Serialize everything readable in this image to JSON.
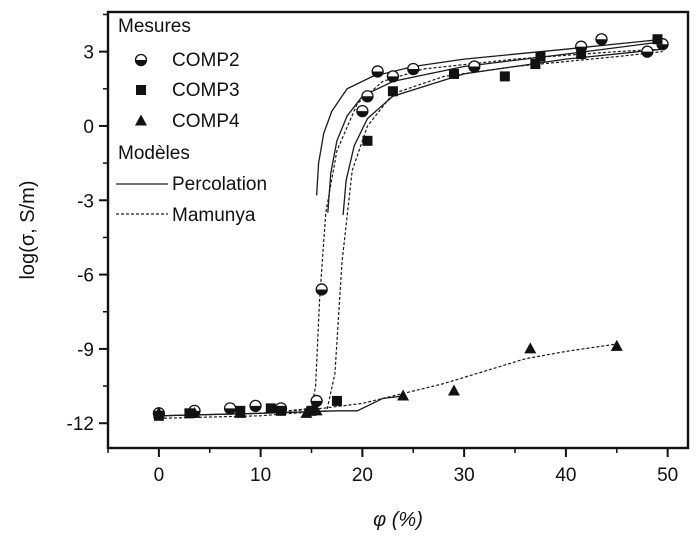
{
  "chart_data": {
    "type": "scatter",
    "xlabel": "φ (%)",
    "ylabel": "log(σ, S/m)",
    "xlim": [
      -5,
      52
    ],
    "ylim": [
      -13,
      4.6
    ],
    "xticks": [
      0,
      10,
      20,
      30,
      40,
      50
    ],
    "xtick_labels": [
      "0",
      "10",
      "20",
      "30",
      "40",
      "50"
    ],
    "yticks": [
      3,
      0,
      -3,
      -6,
      -9,
      -12
    ],
    "ytick_labels": [
      "3",
      "0",
      "-3",
      "-6",
      "-9",
      "-12"
    ],
    "grid": false,
    "legend": {
      "placement": "top-left",
      "measures_title": "Mesures",
      "models_title": "Modèles"
    },
    "series": [
      {
        "name": "COMP2",
        "marker": "half-filled-circle",
        "points": [
          [
            0,
            -11.6
          ],
          [
            3.5,
            -11.5
          ],
          [
            7,
            -11.4
          ],
          [
            9.5,
            -11.3
          ],
          [
            12,
            -11.4
          ],
          [
            15.5,
            -11.1
          ],
          [
            16,
            -6.6
          ],
          [
            20,
            0.6
          ],
          [
            20.5,
            1.2
          ],
          [
            21.5,
            2.2
          ],
          [
            23,
            2.0
          ],
          [
            25,
            2.3
          ],
          [
            31,
            2.4
          ],
          [
            41.5,
            3.2
          ],
          [
            43.5,
            3.5
          ],
          [
            48,
            3.0
          ],
          [
            49.5,
            3.3
          ]
        ]
      },
      {
        "name": "COMP3",
        "marker": "square",
        "points": [
          [
            0,
            -11.7
          ],
          [
            3,
            -11.6
          ],
          [
            8,
            -11.5
          ],
          [
            11,
            -11.4
          ],
          [
            12,
            -11.5
          ],
          [
            15,
            -11.5
          ],
          [
            17.5,
            -11.1
          ],
          [
            20.5,
            -0.6
          ],
          [
            23,
            1.4
          ],
          [
            29,
            2.1
          ],
          [
            34,
            2.0
          ],
          [
            37,
            2.5
          ],
          [
            37.5,
            2.8
          ],
          [
            41.5,
            2.9
          ],
          [
            49,
            3.5
          ]
        ]
      },
      {
        "name": "COMP4",
        "marker": "triangle",
        "points": [
          [
            0,
            -11.6
          ],
          [
            3.5,
            -11.6
          ],
          [
            8,
            -11.6
          ],
          [
            14.5,
            -11.6
          ],
          [
            15.5,
            -11.5
          ],
          [
            24,
            -10.9
          ],
          [
            29,
            -10.7
          ],
          [
            36.5,
            -9.0
          ],
          [
            45,
            -8.9
          ]
        ]
      }
    ],
    "model_curves": [
      {
        "name": "Percolation",
        "style": "solid",
        "curves": [
          [
            [
              0,
              -11.7
            ],
            [
              10,
              -11.6
            ],
            [
              17.5,
              -11.5
            ],
            [
              19.5,
              -11.5
            ],
            [
              21,
              -11.2
            ],
            [
              22,
              -11.0
            ],
            [
              24,
              -10.9
            ]
          ],
          [
            [
              15.5,
              -2.8
            ],
            [
              15.7,
              -1.5
            ],
            [
              16.2,
              -0.3
            ],
            [
              17,
              0.6
            ],
            [
              18.5,
              1.5
            ],
            [
              21,
              2.0
            ],
            [
              25,
              2.4
            ],
            [
              30,
              2.7
            ],
            [
              40,
              3.1
            ],
            [
              49.5,
              3.5
            ]
          ],
          [
            [
              16.6,
              -3.5
            ],
            [
              16.9,
              -1.9
            ],
            [
              17.5,
              -0.6
            ],
            [
              18.5,
              0.4
            ],
            [
              20,
              1.2
            ],
            [
              23,
              1.8
            ],
            [
              30,
              2.4
            ],
            [
              40,
              2.9
            ],
            [
              49.5,
              3.4
            ]
          ],
          [
            [
              18.1,
              -3.6
            ],
            [
              18.4,
              -2.2
            ],
            [
              19.2,
              -0.8
            ],
            [
              20.5,
              0.3
            ],
            [
              23,
              1.2
            ],
            [
              30,
              2.1
            ],
            [
              40,
              2.7
            ],
            [
              49.5,
              3.1
            ]
          ]
        ]
      },
      {
        "name": "Mamunya",
        "style": "dashed",
        "curves": [
          [
            [
              0,
              -11.7
            ],
            [
              10,
              -11.6
            ],
            [
              15,
              -11.4
            ],
            [
              15.4,
              -10.5
            ],
            [
              15.8,
              -7
            ],
            [
              16.4,
              -3.5
            ],
            [
              17.5,
              -1.0
            ],
            [
              19.5,
              0.9
            ],
            [
              22,
              1.8
            ],
            [
              26,
              2.3
            ],
            [
              35,
              2.7
            ],
            [
              45,
              3.0
            ],
            [
              49.5,
              3.1
            ]
          ],
          [
            [
              0,
              -11.8
            ],
            [
              10,
              -11.7
            ],
            [
              16.5,
              -11.5
            ],
            [
              17.3,
              -10
            ],
            [
              18,
              -5.5
            ],
            [
              19,
              -1.8
            ],
            [
              20.5,
              0.0
            ],
            [
              23,
              1.3
            ],
            [
              28,
              2.0
            ],
            [
              35,
              2.4
            ],
            [
              45,
              2.8
            ],
            [
              49.5,
              3.0
            ]
          ],
          [
            [
              0,
              -11.7
            ],
            [
              10,
              -11.6
            ],
            [
              16,
              -11.4
            ],
            [
              20,
              -11.2
            ],
            [
              24,
              -10.8
            ],
            [
              28,
              -10.4
            ],
            [
              32,
              -9.9
            ],
            [
              36,
              -9.4
            ],
            [
              40,
              -9.1
            ],
            [
              45,
              -8.8
            ]
          ]
        ]
      }
    ]
  }
}
